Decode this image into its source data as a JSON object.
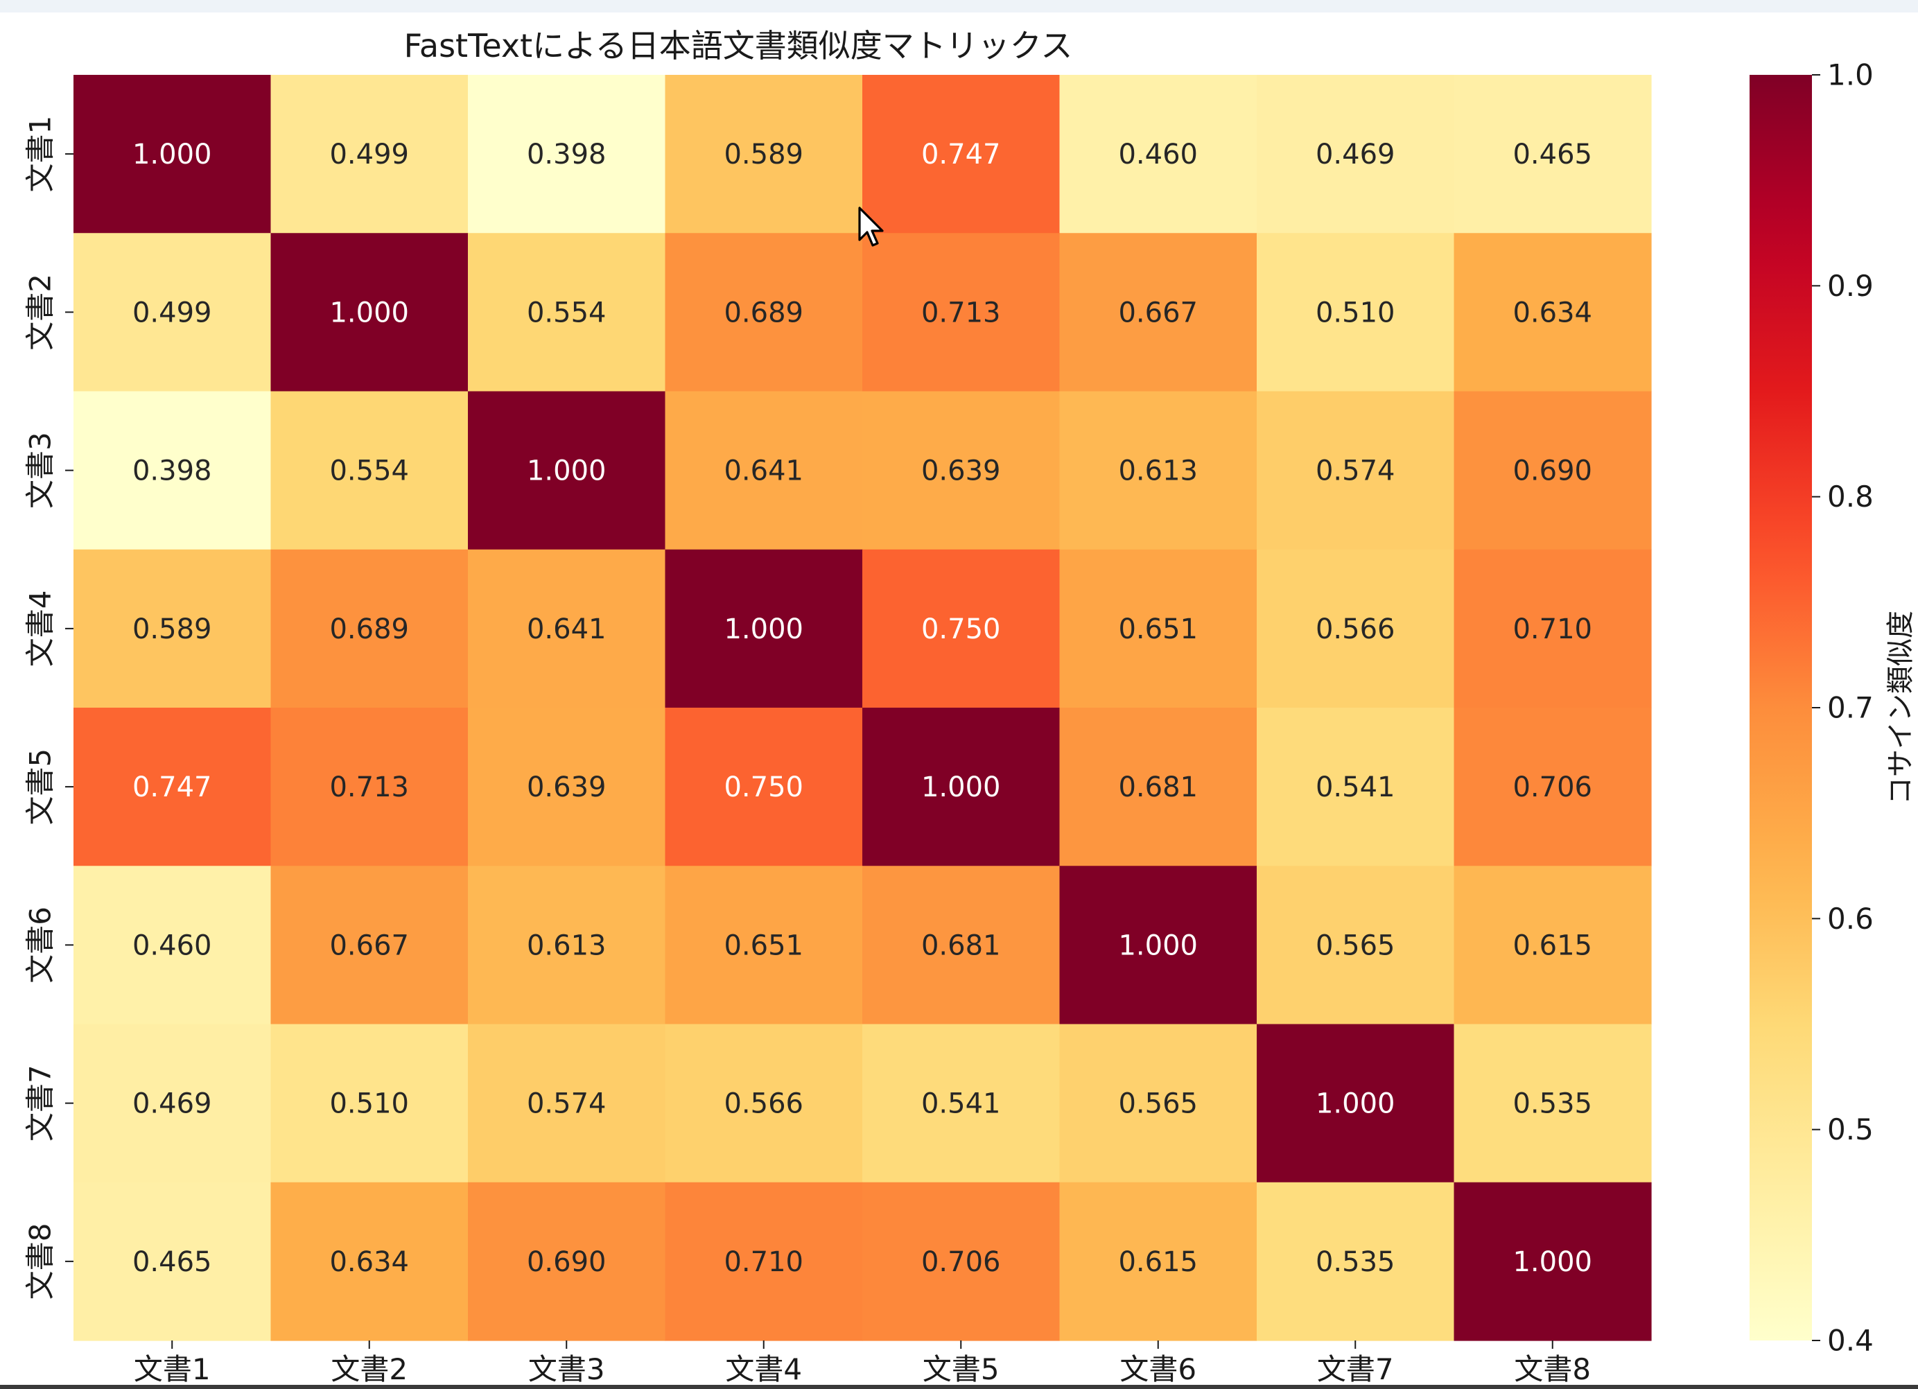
{
  "chart_data": {
    "type": "heatmap",
    "title": "FastTextによる日本語文書類似度マトリックス",
    "x_labels": [
      "文書1",
      "文書2",
      "文書3",
      "文書4",
      "文書5",
      "文書6",
      "文書7",
      "文書8"
    ],
    "y_labels": [
      "文書1",
      "文書2",
      "文書3",
      "文書4",
      "文書5",
      "文書6",
      "文書7",
      "文書8"
    ],
    "values": [
      [
        1.0,
        0.499,
        0.398,
        0.589,
        0.747,
        0.46,
        0.469,
        0.465
      ],
      [
        0.499,
        1.0,
        0.554,
        0.689,
        0.713,
        0.667,
        0.51,
        0.634
      ],
      [
        0.398,
        0.554,
        1.0,
        0.641,
        0.639,
        0.613,
        0.574,
        0.69
      ],
      [
        0.589,
        0.689,
        0.641,
        1.0,
        0.75,
        0.651,
        0.566,
        0.71
      ],
      [
        0.747,
        0.713,
        0.639,
        0.75,
        1.0,
        0.681,
        0.541,
        0.706
      ],
      [
        0.46,
        0.667,
        0.613,
        0.651,
        0.681,
        1.0,
        0.565,
        0.615
      ],
      [
        0.469,
        0.51,
        0.574,
        0.566,
        0.541,
        0.565,
        1.0,
        0.535
      ],
      [
        0.465,
        0.634,
        0.69,
        0.71,
        0.706,
        0.615,
        0.535,
        1.0
      ]
    ],
    "annotation_format": "0.000",
    "colormap": "YlOrRd",
    "colorbar": {
      "label": "コサイン類似度",
      "range": [
        0.4,
        1.0
      ],
      "ticks": [
        0.4,
        0.5,
        0.6,
        0.7,
        0.8,
        0.9,
        1.0
      ]
    }
  }
}
